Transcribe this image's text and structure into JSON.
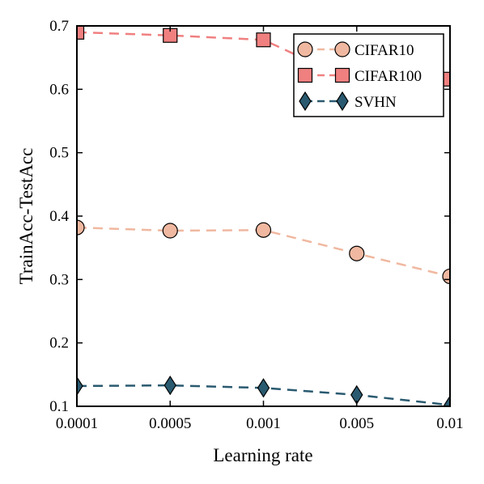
{
  "chart_data": {
    "type": "line",
    "title": "",
    "xlabel": "Learning rate",
    "ylabel": "TrainAcc-TestAcc",
    "categories": [
      "0.0001",
      "0.0005",
      "0.001",
      "0.005",
      "0.01"
    ],
    "ylim": [
      0.1,
      0.7
    ],
    "yticks": [
      "0.1",
      "0.2",
      "0.3",
      "0.4",
      "0.5",
      "0.6",
      "0.7"
    ],
    "grid": false,
    "legend_position": "top-right",
    "series": [
      {
        "name": "CIFAR10",
        "values": [
          0.382,
          0.377,
          0.378,
          0.341,
          0.305
        ],
        "color": "#f0b8a0",
        "marker": "circle"
      },
      {
        "name": "CIFAR100",
        "values": [
          0.69,
          0.685,
          0.678,
          0.61,
          0.616
        ],
        "color": "#f08080",
        "marker": "square"
      },
      {
        "name": "SVHN",
        "values": [
          0.132,
          0.133,
          0.129,
          0.118,
          0.102
        ],
        "color": "#2a5a70",
        "marker": "diamond"
      }
    ]
  }
}
